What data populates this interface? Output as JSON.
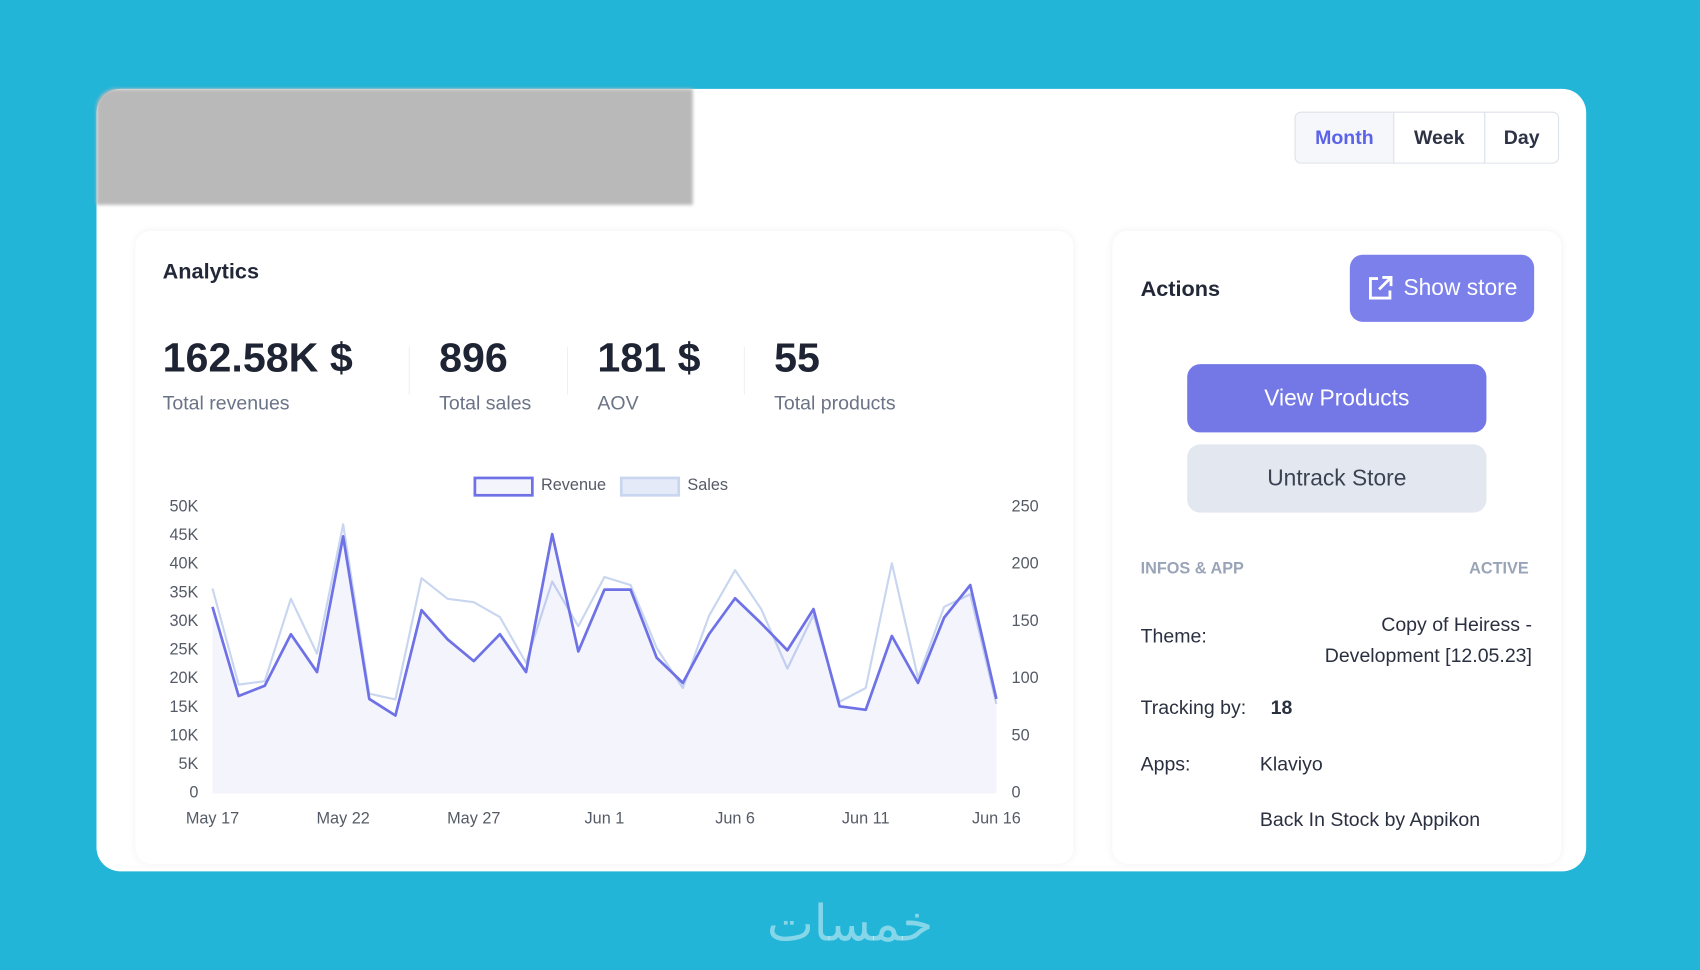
{
  "header": {
    "period_buttons": [
      "Month",
      "Week",
      "Day"
    ]
  },
  "analytics": {
    "title": "Analytics",
    "stats": [
      {
        "value": "162.58K $",
        "label": "Total revenues"
      },
      {
        "value": "896",
        "label": "Total sales"
      },
      {
        "value": "181 $",
        "label": "AOV"
      },
      {
        "value": "55",
        "label": "Total products"
      }
    ]
  },
  "chart_data": {
    "type": "line",
    "categories": [
      "May 17",
      null,
      null,
      null,
      null,
      "May 22",
      null,
      null,
      null,
      null,
      "May 27",
      null,
      null,
      null,
      null,
      "Jun 1",
      null,
      null,
      null,
      null,
      "Jun 6",
      null,
      null,
      null,
      null,
      "Jun 11",
      null,
      null,
      null,
      null,
      "Jun 16"
    ],
    "series": [
      {
        "name": "Revenue",
        "color": "#6e72e6",
        "values": [
          32600,
          17000,
          18800,
          27800,
          21200,
          44900,
          16500,
          13600,
          32000,
          26900,
          23100,
          27800,
          21200,
          45300,
          24800,
          35600,
          35600,
          23700,
          19300,
          27800,
          34100,
          29700,
          25000,
          32200,
          15200,
          14600,
          27500,
          19300,
          30700,
          36400,
          16500
        ]
      },
      {
        "name": "Sales",
        "color": "#c9d6f0",
        "axis": "y2",
        "values": [
          179,
          95,
          98,
          170,
          122,
          235,
          87,
          82,
          188,
          170,
          167,
          154,
          114,
          185,
          146,
          189,
          182,
          127,
          92,
          155,
          195,
          161,
          109,
          156,
          80,
          92,
          201,
          101,
          163,
          174,
          78
        ]
      }
    ],
    "ylim": [
      0,
      50000
    ],
    "yticks": [
      0,
      {
        "value": 5000,
        "label": "5K"
      },
      {
        "value": 10000,
        "label": "10K"
      },
      {
        "value": 15000,
        "label": "15K"
      },
      {
        "value": 20000,
        "label": "20K"
      },
      {
        "value": 25000,
        "label": "25K"
      },
      {
        "value": 30000,
        "label": "30K"
      },
      {
        "value": 35000,
        "label": "35K"
      },
      {
        "value": 40000,
        "label": "40K"
      },
      {
        "value": 45000,
        "label": "45K"
      },
      {
        "value": 50000,
        "label": "50K"
      }
    ],
    "y2lim": [
      0,
      250
    ],
    "y2ticks": [
      0,
      50,
      100,
      150,
      200,
      250
    ],
    "grid": false,
    "legend": "top"
  },
  "actions": {
    "title": "Actions",
    "show_store": "Show store",
    "view_products": "View Products",
    "untrack_store": "Untrack Store",
    "infos_label": "INFOS & APP",
    "status": "ACTIVE",
    "theme_label": "Theme:",
    "theme_value": [
      "Copy of Heiress -",
      "Development [12.05.23]"
    ],
    "tracking_label": "Tracking by:",
    "tracking_value": "18",
    "apps_label": "Apps:",
    "apps": [
      "Klaviyo",
      "Back In Stock by Appikon"
    ]
  },
  "watermark": "خمسات"
}
